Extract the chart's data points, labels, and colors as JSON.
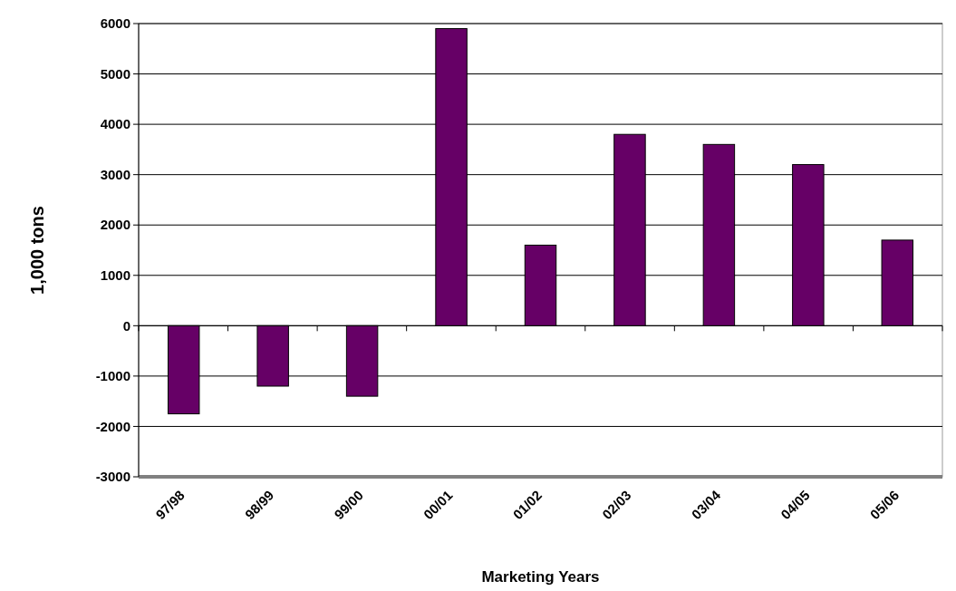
{
  "chart_data": {
    "type": "bar",
    "xlabel": "Marketing Years",
    "ylabel": "1,000 tons",
    "categories": [
      "97/98",
      "98/99",
      "99/00",
      "00/01",
      "01/02",
      "02/03",
      "03/04",
      "04/05",
      "05/06"
    ],
    "values": [
      -1750,
      -1200,
      -1400,
      5900,
      1600,
      3800,
      3600,
      3200,
      1700
    ],
    "color": "#660066",
    "ylim": [
      -3000,
      6000
    ],
    "yticks": [
      -3000,
      -2000,
      -1000,
      0,
      1000,
      2000,
      3000,
      4000,
      5000,
      6000
    ],
    "grid": "y"
  }
}
